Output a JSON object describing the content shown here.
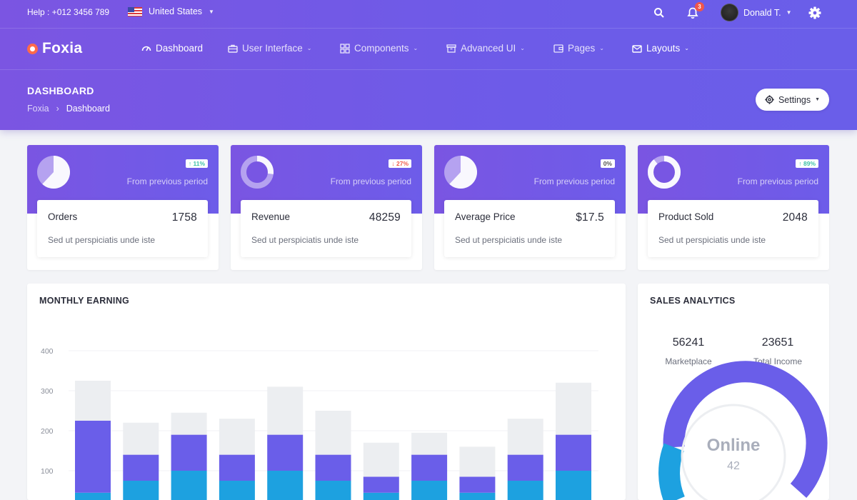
{
  "topbar": {
    "help": "Help : +012 3456 789",
    "language": "United States",
    "notifications_count": "3",
    "user_name": "Donald T."
  },
  "brand": {
    "name": "Foxia"
  },
  "nav": {
    "items": [
      {
        "label": "Dashboard",
        "icon": "gauge-icon",
        "active": true
      },
      {
        "label": "User Interface",
        "icon": "briefcase-icon"
      },
      {
        "label": "Components",
        "icon": "grid-icon"
      },
      {
        "label": "Advanced UI",
        "icon": "archive-icon"
      },
      {
        "label": "Pages",
        "icon": "wallet-icon"
      },
      {
        "label": "Layouts",
        "icon": "envelope-icon"
      }
    ]
  },
  "header": {
    "title": "DASHBOARD",
    "breadcrumb": [
      "Foxia",
      "Dashboard"
    ],
    "settings_label": "Settings"
  },
  "stats": [
    {
      "label": "Orders",
      "value": "1758",
      "change": "↑ 11%",
      "trend": "up",
      "from": "From previous period",
      "desc": "Sed ut perspiciatis unde iste",
      "donut": "pie",
      "donut_fraction": 0.62
    },
    {
      "label": "Revenue",
      "value": "48259",
      "change": "↓ 27%",
      "trend": "down",
      "from": "From previous period",
      "desc": "Sed ut perspiciatis unde iste",
      "donut": "ring",
      "donut_fraction": 0.27
    },
    {
      "label": "Average Price",
      "value": "$17.5",
      "change": "0%",
      "trend": "flat",
      "from": "From previous period",
      "desc": "Sed ut perspiciatis unde iste",
      "donut": "pie",
      "donut_fraction": 0.62
    },
    {
      "label": "Product Sold",
      "value": "2048",
      "change": "↑ 89%",
      "trend": "up",
      "from": "From previous period",
      "desc": "Sed ut perspiciatis unde iste",
      "donut": "ring",
      "donut_fraction": 0.89
    }
  ],
  "monthly_earning": {
    "title": "MONTHLY EARNING"
  },
  "sales_analytics": {
    "title": "SALES ANALYTICS",
    "marketplace_value": "56241",
    "marketplace_label": "Marketplace",
    "income_value": "23651",
    "income_label": "Total Income",
    "center_label": "Online",
    "center_value": "42"
  },
  "colors": {
    "primary": "#6a5ee9",
    "secondary": "#1da1e0",
    "muted": "#eceef1",
    "positive": "#3cc0a7",
    "negative": "#f05a4a"
  },
  "chart_data": {
    "type": "bar",
    "stacked": true,
    "title": "MONTHLY EARNING",
    "ylim": [
      0,
      400
    ],
    "yticks": [
      100,
      200,
      300,
      400
    ],
    "grid": true,
    "categories": [
      "",
      "",
      "",
      "",
      "",
      "",
      "",
      "",
      "",
      "",
      "",
      ""
    ],
    "series": [
      {
        "color": "#1da1e0",
        "values": [
          45,
          75,
          100,
          75,
          100,
          75,
          45,
          75,
          45,
          75,
          100,
          0
        ]
      },
      {
        "color": "#6a5ee9",
        "values": [
          180,
          65,
          90,
          65,
          90,
          65,
          40,
          65,
          40,
          65,
          90,
          0
        ]
      },
      {
        "color": "#eceef1",
        "values": [
          100,
          80,
          55,
          90,
          120,
          110,
          85,
          55,
          75,
          90,
          130,
          0
        ]
      }
    ]
  }
}
